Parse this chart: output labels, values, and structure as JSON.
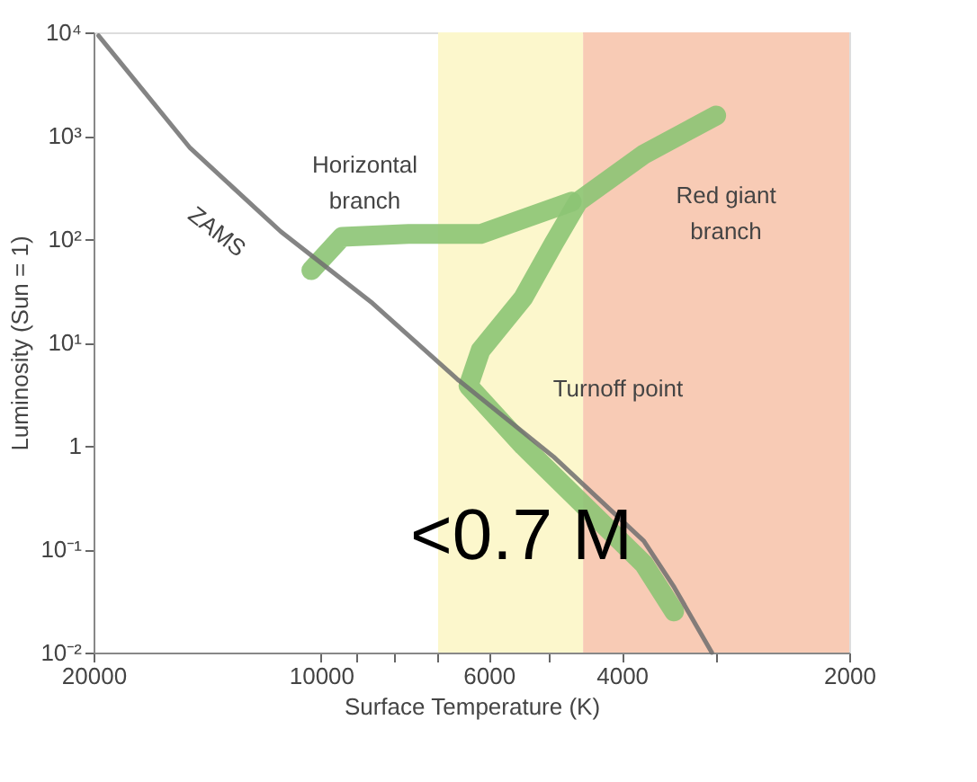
{
  "chart_data": {
    "type": "line",
    "xlabel": "Surface Temperature   (K)",
    "ylabel": "Luminosity   (Sun = 1)",
    "log": "xy",
    "grid": false,
    "marker": "none",
    "line_style": "solid",
    "xlim": [
      20000,
      2000
    ],
    "xticks": [
      20000,
      {
        "value": 9000,
        "label": null
      },
      {
        "value": 8000,
        "label": null
      },
      {
        "value": 7000,
        "label": null
      },
      10000,
      6000,
      {
        "value": 5000,
        "label": null
      },
      4000,
      {
        "value": 3000,
        "label": null
      },
      2000
    ],
    "ylim": [
      0.01,
      10000
    ],
    "yticks": [
      {
        "value": 0.01,
        "label": "10⁻²"
      },
      {
        "value": 0.1,
        "label": "10⁻¹"
      },
      1,
      {
        "value": 10,
        "label": "10¹"
      },
      {
        "value": 100,
        "label": "10²"
      },
      {
        "value": 1000,
        "label": "10³"
      },
      {
        "value": 10000,
        "label": "10⁴"
      }
    ],
    "bands": [
      {
        "axis": "x",
        "from": 7000,
        "to": 4500,
        "color": "#fcf7cc"
      },
      {
        "axis": "x",
        "from": 4500,
        "to": 2000,
        "color": "#f8cbb5"
      }
    ],
    "series": [
      {
        "color": "#6e6e6e",
        "x": [
          19700,
          14900,
          11300,
          8550,
          6600,
          4920,
          3740,
          3410,
          3040
        ],
        "values": [
          9300,
          760,
          118,
          24,
          4.4,
          0.78,
          0.12,
          0.043,
          0.01
        ]
      },
      {
        "color": "#8cc474",
        "x": [
          3410,
          3740,
          4500,
          5400,
          6380,
          6150,
          5400,
          4920,
          4570,
          3740,
          3000
        ],
        "values": [
          0.025,
          0.072,
          0.27,
          1.0,
          3.8,
          8.4,
          27,
          91,
          230,
          660,
          1570
        ]
      },
      {
        "color": "#8cc474",
        "x": [
          10300,
          9380,
          7660,
          6150,
          4660
        ],
        "values": [
          50,
          105,
          112,
          112,
          230
        ]
      }
    ],
    "annotations": [
      "ZAMS",
      "Horizontal\nbranch",
      "Red giant\nbranch",
      "Turnoff point",
      "<0.7 M"
    ]
  }
}
